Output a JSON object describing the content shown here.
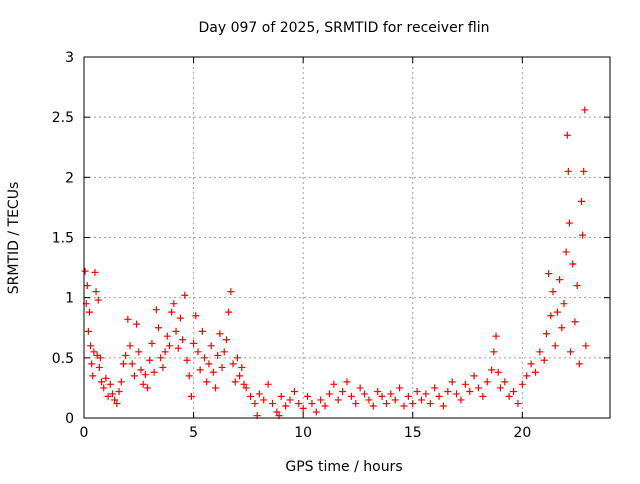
{
  "colors": {
    "marker": "#ff0000",
    "axis": "#000000",
    "grid": "#a0a0a0",
    "background": "#ffffff"
  },
  "chart_data": {
    "type": "scatter",
    "marker": "plus",
    "title": "Day 097 of 2025, SRMTID for receiver flin",
    "xlabel": "GPS time / hours",
    "ylabel": "SRMTID / TECUs",
    "xlim": [
      0,
      24
    ],
    "ylim": [
      0,
      3
    ],
    "xticks": [
      0,
      5,
      10,
      15,
      20
    ],
    "xtick_labels": [
      "0",
      "5",
      "10",
      "15",
      "20"
    ],
    "yticks": [
      0,
      0.5,
      1,
      1.5,
      2,
      2.5,
      3
    ],
    "ytick_labels": [
      "0",
      "0.5",
      "1",
      "1.5",
      "2",
      "2.5",
      "3"
    ],
    "grid": true,
    "series": [
      {
        "name": "SRMTID",
        "points": [
          [
            0.05,
            1.22
          ],
          [
            0.1,
            0.95
          ],
          [
            0.15,
            1.1
          ],
          [
            0.2,
            0.72
          ],
          [
            0.25,
            0.88
          ],
          [
            0.3,
            0.6
          ],
          [
            0.35,
            0.45
          ],
          [
            0.4,
            0.35
          ],
          [
            0.45,
            0.55
          ],
          [
            0.5,
            1.21
          ],
          [
            0.55,
            1.05
          ],
          [
            0.6,
            0.52
          ],
          [
            0.65,
            0.98
          ],
          [
            0.7,
            0.42
          ],
          [
            0.75,
            0.5
          ],
          [
            0.8,
            0.3
          ],
          [
            0.9,
            0.25
          ],
          [
            1.0,
            0.33
          ],
          [
            1.1,
            0.18
          ],
          [
            1.2,
            0.28
          ],
          [
            1.3,
            0.2
          ],
          [
            1.4,
            0.15
          ],
          [
            1.5,
            0.12
          ],
          [
            1.6,
            0.22
          ],
          [
            1.7,
            0.3
          ],
          [
            1.8,
            0.45
          ],
          [
            1.9,
            0.52
          ],
          [
            2.0,
            0.82
          ],
          [
            2.1,
            0.6
          ],
          [
            2.2,
            0.45
          ],
          [
            2.3,
            0.35
          ],
          [
            2.4,
            0.78
          ],
          [
            2.5,
            0.55
          ],
          [
            2.6,
            0.4
          ],
          [
            2.7,
            0.28
          ],
          [
            2.8,
            0.36
          ],
          [
            2.9,
            0.25
          ],
          [
            3.0,
            0.48
          ],
          [
            3.1,
            0.62
          ],
          [
            3.2,
            0.38
          ],
          [
            3.3,
            0.9
          ],
          [
            3.4,
            0.75
          ],
          [
            3.5,
            0.5
          ],
          [
            3.6,
            0.42
          ],
          [
            3.7,
            0.55
          ],
          [
            3.8,
            0.68
          ],
          [
            3.9,
            0.6
          ],
          [
            4.0,
            0.88
          ],
          [
            4.1,
            0.95
          ],
          [
            4.2,
            0.72
          ],
          [
            4.3,
            0.58
          ],
          [
            4.4,
            0.83
          ],
          [
            4.5,
            0.65
          ],
          [
            4.6,
            1.02
          ],
          [
            4.7,
            0.48
          ],
          [
            4.8,
            0.35
          ],
          [
            4.9,
            0.18
          ],
          [
            5.0,
            0.62
          ],
          [
            5.1,
            0.85
          ],
          [
            5.2,
            0.55
          ],
          [
            5.3,
            0.4
          ],
          [
            5.4,
            0.72
          ],
          [
            5.5,
            0.5
          ],
          [
            5.6,
            0.3
          ],
          [
            5.7,
            0.45
          ],
          [
            5.8,
            0.6
          ],
          [
            5.9,
            0.38
          ],
          [
            6.0,
            0.25
          ],
          [
            6.1,
            0.52
          ],
          [
            6.2,
            0.7
          ],
          [
            6.3,
            0.42
          ],
          [
            6.4,
            0.55
          ],
          [
            6.5,
            0.65
          ],
          [
            6.6,
            0.88
          ],
          [
            6.7,
            1.05
          ],
          [
            6.8,
            0.45
          ],
          [
            6.9,
            0.3
          ],
          [
            7.0,
            0.5
          ],
          [
            7.1,
            0.35
          ],
          [
            7.2,
            0.42
          ],
          [
            7.3,
            0.28
          ],
          [
            7.4,
            0.25
          ],
          [
            7.6,
            0.18
          ],
          [
            7.8,
            0.12
          ],
          [
            7.9,
            0.02
          ],
          [
            8.0,
            0.2
          ],
          [
            8.2,
            0.15
          ],
          [
            8.4,
            0.28
          ],
          [
            8.6,
            0.12
          ],
          [
            8.8,
            0.05
          ],
          [
            8.9,
            0.02
          ],
          [
            9.0,
            0.18
          ],
          [
            9.2,
            0.1
          ],
          [
            9.4,
            0.15
          ],
          [
            9.6,
            0.22
          ],
          [
            9.8,
            0.12
          ],
          [
            10.0,
            0.08
          ],
          [
            10.2,
            0.18
          ],
          [
            10.4,
            0.12
          ],
          [
            10.6,
            0.05
          ],
          [
            10.8,
            0.15
          ],
          [
            11.0,
            0.1
          ],
          [
            11.2,
            0.2
          ],
          [
            11.4,
            0.28
          ],
          [
            11.6,
            0.15
          ],
          [
            11.8,
            0.22
          ],
          [
            12.0,
            0.3
          ],
          [
            12.2,
            0.18
          ],
          [
            12.4,
            0.12
          ],
          [
            12.6,
            0.25
          ],
          [
            12.8,
            0.2
          ],
          [
            13.0,
            0.15
          ],
          [
            13.2,
            0.1
          ],
          [
            13.4,
            0.22
          ],
          [
            13.6,
            0.18
          ],
          [
            13.8,
            0.12
          ],
          [
            14.0,
            0.2
          ],
          [
            14.2,
            0.15
          ],
          [
            14.4,
            0.25
          ],
          [
            14.6,
            0.1
          ],
          [
            14.8,
            0.18
          ],
          [
            15.0,
            0.12
          ],
          [
            15.2,
            0.22
          ],
          [
            15.4,
            0.15
          ],
          [
            15.6,
            0.2
          ],
          [
            15.8,
            0.12
          ],
          [
            16.0,
            0.25
          ],
          [
            16.2,
            0.18
          ],
          [
            16.4,
            0.1
          ],
          [
            16.6,
            0.22
          ],
          [
            16.8,
            0.3
          ],
          [
            17.0,
            0.2
          ],
          [
            17.2,
            0.15
          ],
          [
            17.4,
            0.28
          ],
          [
            17.6,
            0.22
          ],
          [
            17.8,
            0.35
          ],
          [
            18.0,
            0.25
          ],
          [
            18.2,
            0.18
          ],
          [
            18.4,
            0.3
          ],
          [
            18.6,
            0.4
          ],
          [
            18.7,
            0.55
          ],
          [
            18.8,
            0.68
          ],
          [
            18.9,
            0.38
          ],
          [
            19.0,
            0.25
          ],
          [
            19.2,
            0.3
          ],
          [
            19.4,
            0.18
          ],
          [
            19.6,
            0.22
          ],
          [
            19.8,
            0.12
          ],
          [
            20.0,
            0.28
          ],
          [
            20.2,
            0.35
          ],
          [
            20.4,
            0.45
          ],
          [
            20.6,
            0.38
          ],
          [
            20.8,
            0.55
          ],
          [
            21.0,
            0.48
          ],
          [
            21.1,
            0.7
          ],
          [
            21.2,
            1.2
          ],
          [
            21.3,
            0.85
          ],
          [
            21.4,
            1.05
          ],
          [
            21.5,
            0.6
          ],
          [
            21.6,
            0.88
          ],
          [
            21.7,
            1.15
          ],
          [
            21.8,
            0.75
          ],
          [
            21.9,
            0.95
          ],
          [
            22.0,
            1.38
          ],
          [
            22.05,
            2.35
          ],
          [
            22.1,
            2.05
          ],
          [
            22.15,
            1.62
          ],
          [
            22.2,
            0.55
          ],
          [
            22.3,
            1.28
          ],
          [
            22.4,
            0.8
          ],
          [
            22.5,
            1.1
          ],
          [
            22.6,
            0.45
          ],
          [
            22.7,
            1.8
          ],
          [
            22.75,
            1.52
          ],
          [
            22.8,
            2.05
          ],
          [
            22.85,
            2.56
          ],
          [
            22.9,
            0.6
          ]
        ]
      }
    ]
  }
}
